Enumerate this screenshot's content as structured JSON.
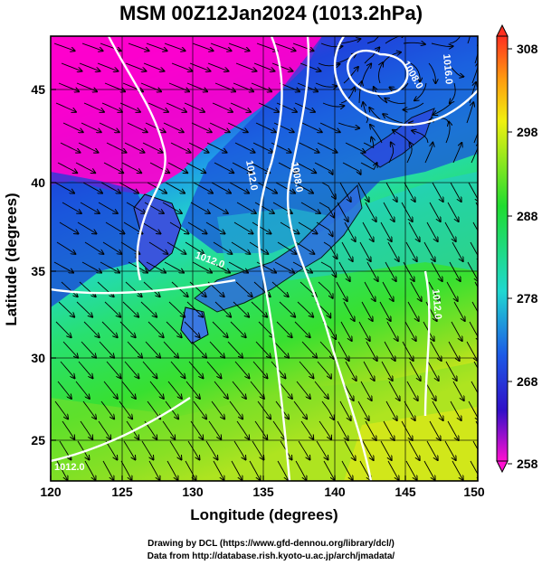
{
  "title": "MSM 00Z12Jan2024 (1013.2hPa)",
  "axes": {
    "xlabel": "Longitude (degrees)",
    "ylabel": "Latitude  (degrees)",
    "x_ticks": [
      "120",
      "125",
      "130",
      "135",
      "140",
      "145",
      "150"
    ],
    "y_ticks": [
      "25",
      "30",
      "35",
      "40",
      "45"
    ],
    "lon_range": [
      120,
      150
    ],
    "lat_range": [
      22.4,
      47.6
    ]
  },
  "colorbar": {
    "ticks": [
      "308",
      "298",
      "288",
      "278",
      "268",
      "258"
    ],
    "range": [
      258,
      308
    ]
  },
  "contour_labels": [
    "1012.0",
    "1008.0",
    "1012.0",
    "1016.0",
    "1012.0",
    "1008.0",
    "1012.0"
  ],
  "credits": {
    "line1": "Drawing by DCL (https://www.gfd-dennou.org/library/dcl/)",
    "line2": "Data from http://database.rish.kyoto-u.ac.jp/arch/jmadata/"
  },
  "colors": {
    "cold": "#ff00cc",
    "cool": "#1a3fd8",
    "mild": "#22d8c8",
    "warm": "#2ee040",
    "hot": "#e8e818",
    "vector": "#000000",
    "isobar": "#ffffff"
  }
}
